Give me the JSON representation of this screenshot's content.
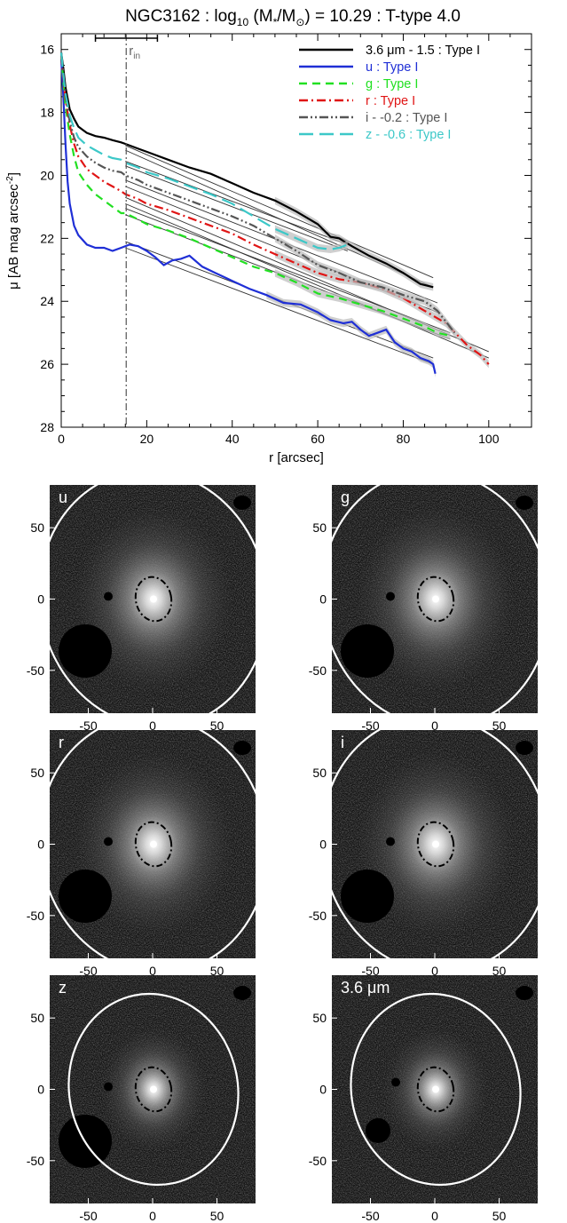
{
  "chart_data": [
    {
      "type": "line",
      "title": "NGC3162 : log10 (M*/M⊙) = 10.29 : T-type 4.0",
      "title_parts": [
        "NGC3162 : log",
        "10",
        " (M",
        "*",
        "/M",
        "⊙",
        ") = 10.29 : T-type 4.0"
      ],
      "xlabel": "r [arcsec]",
      "ylabel": "μ [AB mag arcsec⁻²]",
      "ylabel_parts": [
        "μ [AB mag arcsec",
        "-2",
        "]"
      ],
      "xlim": [
        0,
        110
      ],
      "ylim": [
        28,
        15.5
      ],
      "y_inverted": true,
      "xticks": [
        0,
        20,
        40,
        60,
        80,
        100
      ],
      "yticks": [
        16,
        18,
        20,
        22,
        24,
        26,
        28
      ],
      "rin_label": "r",
      "rin_sub": "in",
      "rin": 15.2,
      "rin_range": [
        8,
        22.5
      ],
      "legend_position": "top-right",
      "legend": [
        {
          "label": "3.6 μm - 1.5 : Type I",
          "color": "#000000",
          "dash": "solid"
        },
        {
          "label": "u : Type I",
          "color": "#1f2fd6",
          "dash": "solid"
        },
        {
          "label": "g : Type I",
          "color": "#22e022",
          "dash": "dashed"
        },
        {
          "label": "r : Type I",
          "color": "#e01515",
          "dash": "dashdot"
        },
        {
          "label": "i - -0.2 : Type I",
          "color": "#555555",
          "dash": "dashdotdot"
        },
        {
          "label": "z - -0.6 : Type I",
          "color": "#3cc8c8",
          "dash": "longdash"
        }
      ],
      "series": [
        {
          "name": "3.6 μm - 1.5 : Type I",
          "color": "#000000",
          "dash": "solid",
          "x": [
            0,
            0.5,
            1,
            2,
            3,
            4,
            5,
            6,
            8,
            10,
            12,
            14,
            15,
            18,
            20,
            25,
            30,
            35,
            40,
            45,
            50,
            55,
            60,
            63,
            65,
            68,
            72,
            76,
            80,
            84,
            87
          ],
          "y": [
            16.1,
            16.6,
            17.2,
            17.9,
            18.2,
            18.45,
            18.55,
            18.65,
            18.75,
            18.8,
            18.88,
            18.95,
            19.0,
            19.15,
            19.25,
            19.5,
            19.75,
            19.95,
            20.25,
            20.55,
            20.8,
            21.15,
            21.55,
            21.95,
            22.0,
            22.25,
            22.55,
            22.8,
            23.1,
            23.45,
            23.55
          ]
        },
        {
          "name": "u : Type I",
          "color": "#1f2fd6",
          "dash": "solid",
          "x": [
            0,
            0.5,
            1,
            1.5,
            2,
            3,
            4,
            6,
            8,
            10,
            12,
            14,
            16,
            18,
            20,
            22,
            24,
            26,
            28,
            30,
            33,
            36,
            40,
            44,
            48,
            52,
            56,
            60,
            63,
            66,
            68,
            70,
            72,
            74,
            76,
            78,
            80,
            82,
            84,
            86,
            87,
            87.5
          ],
          "y": [
            16.3,
            17.5,
            19.0,
            20.2,
            20.9,
            21.6,
            21.9,
            22.2,
            22.3,
            22.3,
            22.4,
            22.3,
            22.2,
            22.25,
            22.4,
            22.6,
            22.85,
            22.7,
            22.65,
            22.55,
            22.9,
            23.1,
            23.35,
            23.6,
            23.8,
            24.05,
            24.1,
            24.35,
            24.6,
            24.7,
            24.65,
            24.9,
            25.1,
            25.0,
            24.9,
            25.3,
            25.5,
            25.6,
            25.8,
            25.9,
            26.0,
            26.3
          ]
        },
        {
          "name": "g : Type I",
          "color": "#22e022",
          "dash": "dashed",
          "x": [
            0,
            0.5,
            1,
            2,
            3,
            4,
            6,
            8,
            10,
            12,
            14,
            15,
            18,
            20,
            25,
            30,
            35,
            40,
            45,
            50,
            55,
            60,
            65,
            70,
            75,
            80,
            85,
            88,
            91
          ],
          "y": [
            16.2,
            17.0,
            17.8,
            18.7,
            19.4,
            19.9,
            20.3,
            20.6,
            20.8,
            21.0,
            21.2,
            21.2,
            21.4,
            21.55,
            21.75,
            22.0,
            22.3,
            22.6,
            22.9,
            23.1,
            23.4,
            23.75,
            23.9,
            24.1,
            24.3,
            24.55,
            24.8,
            25.0,
            25.1
          ]
        },
        {
          "name": "r : Type I",
          "color": "#e01515",
          "dash": "dashdot",
          "x": [
            0,
            0.5,
            1,
            2,
            3,
            4,
            6,
            8,
            10,
            12,
            14,
            15,
            18,
            20,
            25,
            30,
            35,
            40,
            45,
            50,
            55,
            60,
            65,
            70,
            75,
            80,
            85,
            90,
            95,
            98,
            100
          ],
          "y": [
            16.2,
            16.9,
            17.6,
            18.4,
            19.0,
            19.4,
            19.8,
            20.0,
            20.2,
            20.35,
            20.5,
            20.6,
            20.75,
            20.9,
            21.1,
            21.35,
            21.6,
            21.85,
            22.2,
            22.5,
            22.8,
            23.1,
            23.3,
            23.4,
            23.6,
            23.9,
            24.3,
            24.7,
            25.4,
            25.7,
            26.0
          ]
        },
        {
          "name": "i - -0.2 : Type I",
          "color": "#555555",
          "dash": "dashdotdot",
          "x": [
            0,
            0.5,
            1,
            2,
            3,
            4,
            6,
            8,
            10,
            12,
            14,
            15,
            18,
            20,
            25,
            30,
            35,
            40,
            45,
            50,
            55,
            60,
            65,
            70,
            75,
            80,
            85,
            88,
            92
          ],
          "y": [
            16.1,
            16.8,
            17.5,
            18.3,
            18.8,
            19.1,
            19.4,
            19.6,
            19.75,
            19.85,
            19.9,
            20.0,
            20.15,
            20.3,
            20.55,
            20.8,
            21.05,
            21.3,
            21.6,
            22.0,
            22.4,
            22.85,
            23.1,
            23.4,
            23.55,
            23.8,
            24.0,
            24.3,
            25.0
          ]
        },
        {
          "name": "z - -0.6 : Type I",
          "color": "#3cc8c8",
          "dash": "longdash",
          "x": [
            0,
            0.5,
            1,
            2,
            3,
            4,
            6,
            8,
            10,
            12,
            14,
            15,
            18,
            20,
            25,
            30,
            35,
            40,
            45,
            50,
            55,
            60,
            63,
            65,
            67
          ],
          "y": [
            16.1,
            16.8,
            17.4,
            18.1,
            18.5,
            18.8,
            19.05,
            19.2,
            19.35,
            19.45,
            19.5,
            19.6,
            19.75,
            19.9,
            20.1,
            20.35,
            20.6,
            20.9,
            21.3,
            21.7,
            22.0,
            22.3,
            22.35,
            22.3,
            22.2
          ]
        }
      ],
      "fits": [
        {
          "x": [
            15,
            87
          ],
          "y": [
            19.05,
            23.25
          ]
        },
        {
          "x": [
            15,
            87
          ],
          "y": [
            19.2,
            23.55
          ]
        },
        {
          "x": [
            15,
            68
          ],
          "y": [
            19.55,
            22.25
          ]
        },
        {
          "x": [
            15,
            67
          ],
          "y": [
            19.7,
            22.4
          ]
        },
        {
          "x": [
            15,
            88
          ],
          "y": [
            20.15,
            24.05
          ]
        },
        {
          "x": [
            15,
            88
          ],
          "y": [
            20.35,
            24.35
          ]
        },
        {
          "x": [
            15,
            100
          ],
          "y": [
            20.7,
            25.6
          ]
        },
        {
          "x": [
            15,
            100
          ],
          "y": [
            20.9,
            25.8
          ]
        },
        {
          "x": [
            15,
            91
          ],
          "y": [
            21.05,
            25.0
          ]
        },
        {
          "x": [
            15,
            91
          ],
          "y": [
            21.25,
            25.2
          ]
        },
        {
          "x": [
            15,
            87
          ],
          "y": [
            22.1,
            25.8
          ]
        },
        {
          "x": [
            15,
            87
          ],
          "y": [
            22.3,
            26.0
          ]
        }
      ]
    },
    {
      "type": "image_grid",
      "panels": [
        {
          "label": "u",
          "label_parts": [
            "u"
          ]
        },
        {
          "label": "g",
          "label_parts": [
            "g"
          ]
        },
        {
          "label": "r",
          "label_parts": [
            "r"
          ]
        },
        {
          "label": "i",
          "label_parts": [
            "i"
          ]
        },
        {
          "label": "z",
          "label_parts": [
            "z"
          ]
        },
        {
          "label": "3.6 μm",
          "label_parts": [
            "3.6 μm"
          ]
        }
      ],
      "xticks": [
        -50,
        0,
        50
      ],
      "yticks": [
        50,
        0,
        -50
      ],
      "xlim": [
        -80,
        80
      ],
      "ylim": [
        -80,
        80
      ]
    }
  ]
}
